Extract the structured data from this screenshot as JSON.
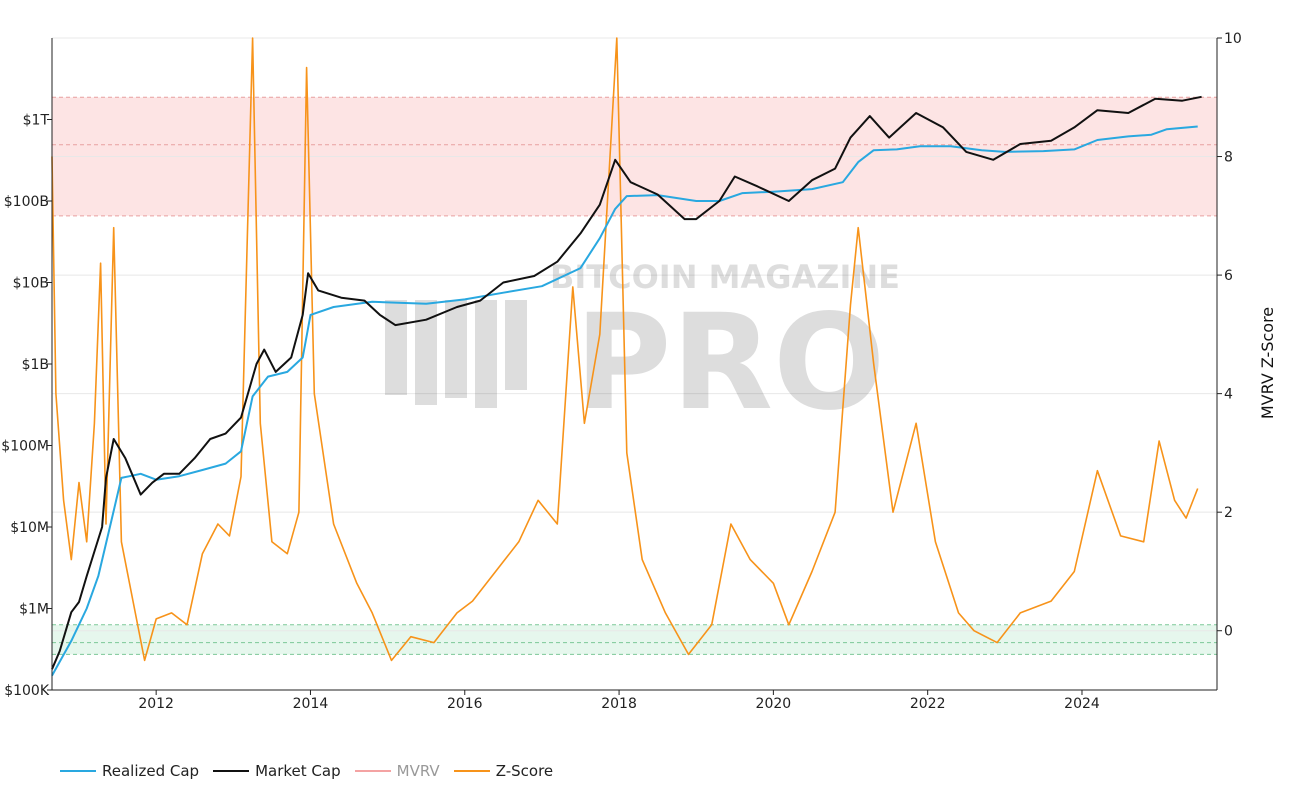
{
  "chart_data": {
    "type": "line",
    "title": "",
    "watermark": {
      "line1": "BITCOIN MAGAZINE",
      "line2": "PRO"
    },
    "x_axis": {
      "range": [
        2010.65,
        2025.75
      ],
      "ticks": [
        "2012",
        "2014",
        "2016",
        "2018",
        "2020",
        "2022",
        "2024"
      ],
      "tick_values": [
        2012,
        2014,
        2016,
        2018,
        2020,
        2022,
        2024
      ]
    },
    "y_left": {
      "scale": "log",
      "range": [
        100000,
        10000000000000
      ],
      "ticks": [
        "$100K",
        "$1M",
        "$10M",
        "$100M",
        "$1B",
        "$10B",
        "$100B",
        "$1T"
      ],
      "tick_values": [
        100000,
        1000000,
        10000000,
        100000000,
        1000000000,
        10000000000,
        100000000000,
        1000000000000
      ]
    },
    "y_right": {
      "label": "MVRV Z-Score",
      "range": [
        -1,
        10
      ],
      "ticks": [
        "0",
        "2",
        "4",
        "6",
        "8",
        "10"
      ],
      "tick_values": [
        0,
        2,
        4,
        6,
        8,
        10
      ]
    },
    "bands": [
      {
        "name": "overvalued",
        "axis": "right",
        "from": 7.0,
        "to": 9.0,
        "mid": 8.2,
        "color": "#fde4e4",
        "border": "#e8a0a0"
      },
      {
        "name": "undervalued",
        "axis": "right",
        "from": -0.4,
        "to": 0.1,
        "mid": -0.2,
        "color": "#e6f7ed",
        "border": "#7cc897"
      }
    ],
    "series": [
      {
        "name": "Realized Cap",
        "axis": "left",
        "color": "#29a8e0",
        "points": [
          [
            2010.65,
            150000
          ],
          [
            2010.9,
            400000
          ],
          [
            2011.1,
            1000000
          ],
          [
            2011.25,
            2500000
          ],
          [
            2011.4,
            10000000
          ],
          [
            2011.55,
            40000000
          ],
          [
            2011.8,
            45000000
          ],
          [
            2012.0,
            38000000
          ],
          [
            2012.3,
            42000000
          ],
          [
            2012.6,
            50000000
          ],
          [
            2012.9,
            60000000
          ],
          [
            2013.1,
            85000000
          ],
          [
            2013.25,
            400000000
          ],
          [
            2013.45,
            700000000
          ],
          [
            2013.7,
            800000000
          ],
          [
            2013.9,
            1200000000
          ],
          [
            2014.0,
            4000000000
          ],
          [
            2014.3,
            5000000000
          ],
          [
            2014.8,
            5800000000
          ],
          [
            2015.5,
            5500000000
          ],
          [
            2016.0,
            6200000000
          ],
          [
            2016.5,
            7500000000
          ],
          [
            2017.0,
            9000000000
          ],
          [
            2017.5,
            15000000000
          ],
          [
            2017.75,
            35000000000
          ],
          [
            2017.95,
            80000000000
          ],
          [
            2018.1,
            115000000000
          ],
          [
            2018.5,
            118000000000
          ],
          [
            2019.0,
            100000000000
          ],
          [
            2019.3,
            100000000000
          ],
          [
            2019.6,
            125000000000
          ],
          [
            2020.0,
            130000000000
          ],
          [
            2020.5,
            140000000000
          ],
          [
            2020.9,
            170000000000
          ],
          [
            2021.1,
            300000000000
          ],
          [
            2021.3,
            420000000000
          ],
          [
            2021.6,
            430000000000
          ],
          [
            2021.9,
            470000000000
          ],
          [
            2022.3,
            470000000000
          ],
          [
            2022.7,
            420000000000
          ],
          [
            2023.0,
            400000000000
          ],
          [
            2023.5,
            410000000000
          ],
          [
            2023.9,
            430000000000
          ],
          [
            2024.2,
            560000000000
          ],
          [
            2024.6,
            620000000000
          ],
          [
            2024.9,
            650000000000
          ],
          [
            2025.1,
            760000000000
          ],
          [
            2025.5,
            820000000000
          ]
        ]
      },
      {
        "name": "Market Cap",
        "axis": "left",
        "color": "#111111",
        "points": [
          [
            2010.65,
            180000
          ],
          [
            2010.75,
            300000
          ],
          [
            2010.9,
            900000
          ],
          [
            2011.0,
            1200000
          ],
          [
            2011.1,
            2500000
          ],
          [
            2011.2,
            5000000
          ],
          [
            2011.3,
            10000000
          ],
          [
            2011.35,
            40000000
          ],
          [
            2011.45,
            120000000
          ],
          [
            2011.6,
            70000000
          ],
          [
            2011.8,
            25000000
          ],
          [
            2011.95,
            35000000
          ],
          [
            2012.1,
            45000000
          ],
          [
            2012.3,
            45000000
          ],
          [
            2012.5,
            70000000
          ],
          [
            2012.7,
            120000000
          ],
          [
            2012.9,
            140000000
          ],
          [
            2013.1,
            220000000
          ],
          [
            2013.3,
            1000000000
          ],
          [
            2013.4,
            1500000000
          ],
          [
            2013.55,
            800000000
          ],
          [
            2013.75,
            1200000000
          ],
          [
            2013.9,
            4000000000
          ],
          [
            2013.97,
            13000000000
          ],
          [
            2014.1,
            8000000000
          ],
          [
            2014.4,
            6500000000
          ],
          [
            2014.7,
            6000000000
          ],
          [
            2014.9,
            4000000000
          ],
          [
            2015.1,
            3000000000
          ],
          [
            2015.5,
            3500000000
          ],
          [
            2015.9,
            5000000000
          ],
          [
            2016.2,
            6000000000
          ],
          [
            2016.5,
            10000000000
          ],
          [
            2016.9,
            12000000000
          ],
          [
            2017.2,
            18000000000
          ],
          [
            2017.5,
            40000000000
          ],
          [
            2017.75,
            90000000000
          ],
          [
            2017.95,
            320000000000
          ],
          [
            2018.15,
            170000000000
          ],
          [
            2018.5,
            120000000000
          ],
          [
            2018.85,
            60000000000
          ],
          [
            2019.0,
            60000000000
          ],
          [
            2019.3,
            100000000000
          ],
          [
            2019.5,
            200000000000
          ],
          [
            2019.8,
            150000000000
          ],
          [
            2020.2,
            100000000000
          ],
          [
            2020.5,
            180000000000
          ],
          [
            2020.8,
            250000000000
          ],
          [
            2021.0,
            600000000000
          ],
          [
            2021.25,
            1100000000000
          ],
          [
            2021.5,
            600000000000
          ],
          [
            2021.85,
            1200000000000
          ],
          [
            2022.2,
            800000000000
          ],
          [
            2022.5,
            400000000000
          ],
          [
            2022.85,
            320000000000
          ],
          [
            2023.2,
            500000000000
          ],
          [
            2023.6,
            550000000000
          ],
          [
            2023.9,
            800000000000
          ],
          [
            2024.2,
            1300000000000
          ],
          [
            2024.6,
            1200000000000
          ],
          [
            2024.95,
            1800000000000
          ],
          [
            2025.3,
            1700000000000
          ],
          [
            2025.55,
            1900000000000
          ]
        ]
      },
      {
        "name": "MVRV",
        "axis": "right",
        "color": "#f4a3a3",
        "hidden": true,
        "points": []
      },
      {
        "name": "Z-Score",
        "axis": "right",
        "color": "#f7931a",
        "points": [
          [
            2010.65,
            8.0
          ],
          [
            2010.7,
            4.0
          ],
          [
            2010.8,
            2.2
          ],
          [
            2010.9,
            1.2
          ],
          [
            2011.0,
            2.5
          ],
          [
            2011.1,
            1.5
          ],
          [
            2011.2,
            3.5
          ],
          [
            2011.28,
            6.2
          ],
          [
            2011.35,
            1.8
          ],
          [
            2011.45,
            6.8
          ],
          [
            2011.55,
            1.5
          ],
          [
            2011.7,
            0.5
          ],
          [
            2011.85,
            -0.5
          ],
          [
            2012.0,
            0.2
          ],
          [
            2012.2,
            0.3
          ],
          [
            2012.4,
            0.1
          ],
          [
            2012.6,
            1.3
          ],
          [
            2012.8,
            1.8
          ],
          [
            2012.95,
            1.6
          ],
          [
            2013.1,
            2.6
          ],
          [
            2013.25,
            10.0
          ],
          [
            2013.35,
            3.5
          ],
          [
            2013.5,
            1.5
          ],
          [
            2013.7,
            1.3
          ],
          [
            2013.85,
            2.0
          ],
          [
            2013.95,
            9.5
          ],
          [
            2014.05,
            4.0
          ],
          [
            2014.3,
            1.8
          ],
          [
            2014.6,
            0.8
          ],
          [
            2014.8,
            0.3
          ],
          [
            2015.05,
            -0.5
          ],
          [
            2015.3,
            -0.1
          ],
          [
            2015.6,
            -0.2
          ],
          [
            2015.9,
            0.3
          ],
          [
            2016.1,
            0.5
          ],
          [
            2016.4,
            1.0
          ],
          [
            2016.7,
            1.5
          ],
          [
            2016.95,
            2.2
          ],
          [
            2017.2,
            1.8
          ],
          [
            2017.4,
            5.8
          ],
          [
            2017.55,
            3.5
          ],
          [
            2017.75,
            5.0
          ],
          [
            2017.97,
            10.0
          ],
          [
            2018.1,
            3.0
          ],
          [
            2018.3,
            1.2
          ],
          [
            2018.6,
            0.3
          ],
          [
            2018.9,
            -0.4
          ],
          [
            2019.2,
            0.1
          ],
          [
            2019.45,
            1.8
          ],
          [
            2019.7,
            1.2
          ],
          [
            2020.0,
            0.8
          ],
          [
            2020.2,
            0.1
          ],
          [
            2020.5,
            1.0
          ],
          [
            2020.8,
            2.0
          ],
          [
            2021.0,
            5.5
          ],
          [
            2021.1,
            6.8
          ],
          [
            2021.3,
            4.5
          ],
          [
            2021.55,
            2.0
          ],
          [
            2021.85,
            3.5
          ],
          [
            2022.1,
            1.5
          ],
          [
            2022.4,
            0.3
          ],
          [
            2022.6,
            0.0
          ],
          [
            2022.9,
            -0.2
          ],
          [
            2023.2,
            0.3
          ],
          [
            2023.6,
            0.5
          ],
          [
            2023.9,
            1.0
          ],
          [
            2024.2,
            2.7
          ],
          [
            2024.5,
            1.6
          ],
          [
            2024.8,
            1.5
          ],
          [
            2025.0,
            3.2
          ],
          [
            2025.2,
            2.2
          ],
          [
            2025.35,
            1.9
          ],
          [
            2025.5,
            2.4
          ]
        ]
      }
    ],
    "legend": [
      {
        "label": "Realized Cap",
        "color": "#29a8e0",
        "muted": false
      },
      {
        "label": "Market Cap",
        "color": "#111111",
        "muted": false
      },
      {
        "label": "MVRV",
        "color": "#f4a3a3",
        "muted": true
      },
      {
        "label": "Z-Score",
        "color": "#f7931a",
        "muted": false
      }
    ]
  }
}
